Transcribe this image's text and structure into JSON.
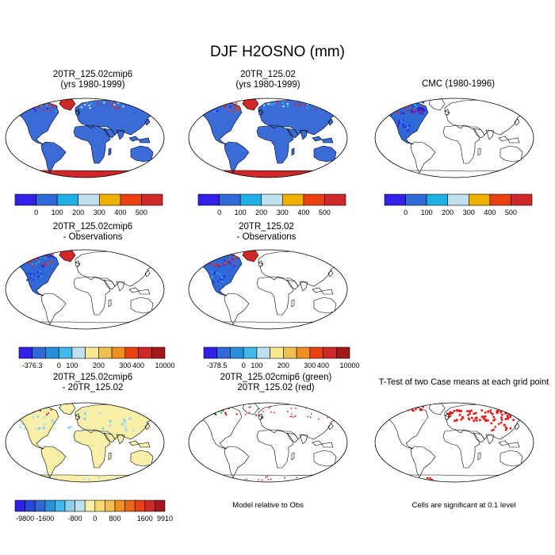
{
  "title": "DJF H2OSNO (mm)",
  "colors": {
    "abs": [
      "#3020e8",
      "#3068d8",
      "#20b0e8",
      "#c0e0f0",
      "#f0b000",
      "#e84010",
      "#d02828"
    ],
    "diff10": [
      "#3020e8",
      "#3068d8",
      "#2890d8",
      "#40b8e8",
      "#c0e0f0",
      "#f8e890",
      "#f0c050",
      "#f09020",
      "#e84010",
      "#d02828",
      "#a01818"
    ],
    "diff14": [
      "#3020e8",
      "#2848d8",
      "#3068d8",
      "#2890d8",
      "#40b8e8",
      "#90d0e8",
      "#c0e0f0",
      "#f8f0a8",
      "#f8d870",
      "#f0c050",
      "#f09020",
      "#e86818",
      "#e84010",
      "#d02828",
      "#a01818"
    ],
    "green": "#2aa02a",
    "red": "#e81010",
    "land": "#3b6bd6"
  },
  "panels": [
    {
      "title_1": "20TR_125.02cmip6",
      "title_2": "(yrs 1980-1999)",
      "fill": "full-abs",
      "colorbar": {
        "labels": [
          "0",
          "100",
          "200",
          "300",
          "400",
          "500"
        ]
      }
    },
    {
      "title_1": "20TR_125.02",
      "title_2": "(yrs 1980-1999)",
      "fill": "full-abs",
      "colorbar": {
        "labels": [
          "0",
          "100",
          "200",
          "300",
          "400",
          "500"
        ]
      }
    },
    {
      "title_1": "CMC (1980-1996)",
      "title_2": "",
      "fill": "na-obs",
      "colorbar": {
        "labels": [
          "0",
          "100",
          "200",
          "300",
          "400",
          "500"
        ]
      }
    },
    {
      "title_1": "20TR_125.02cmip6",
      "title_2": "- Observations",
      "fill": "na-diff",
      "colorbar": {
        "labels": [
          "-376.3",
          "0",
          "100",
          "200",
          "300",
          "400",
          "10000"
        ]
      }
    },
    {
      "title_1": "20TR_125.02",
      "title_2": "- Observations",
      "fill": "na-diff",
      "colorbar": {
        "labels": [
          "-378.5",
          "0",
          "100",
          "200",
          "300",
          "400",
          "10000"
        ]
      }
    },
    {
      "title_1": "20TR_125.02cmip6",
      "title_2": "- 20TR_125.02",
      "fill": "case-diff",
      "colorbar": {
        "labels": [
          "-9800",
          "-1600",
          "-800",
          "0",
          "800",
          "1600",
          "9910"
        ]
      }
    },
    {
      "title_1": "20TR_125.02cmip6 (green)",
      "title_2": "20TR_125.02 (red)",
      "fill": "outline",
      "note": "Model relative to Obs"
    },
    {
      "title_1": "T-Test of two Case means at each grid point",
      "title_2": "",
      "fill": "ttest",
      "note": "Cells are significant at 0.1 level"
    }
  ]
}
